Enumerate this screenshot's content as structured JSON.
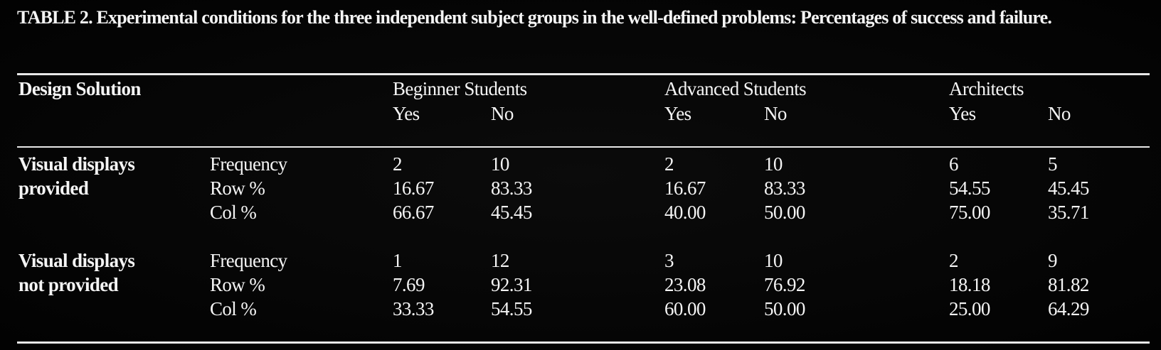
{
  "caption": "TABLE 2. Experimental conditions for the three independent subject groups in the well-defined problems: Percentages of success and failure.",
  "table": {
    "header": {
      "first": "Design Solution",
      "groups": [
        {
          "name": "Beginner Students",
          "sub": [
            "Yes",
            "No"
          ]
        },
        {
          "name": "Advanced Students",
          "sub": [
            "Yes",
            "No"
          ]
        },
        {
          "name": "Architects",
          "sub": [
            "Yes",
            "No"
          ]
        }
      ]
    },
    "blocks": [
      {
        "label": [
          "Visual displays",
          "provided"
        ],
        "rows": [
          {
            "measure": "Frequency",
            "cells": [
              "2",
              "10",
              "2",
              "10",
              "6",
              "5"
            ]
          },
          {
            "measure": "Row %",
            "cells": [
              "16.67",
              "83.33",
              "16.67",
              "83.33",
              "54.55",
              "45.45"
            ]
          },
          {
            "measure": "Col %",
            "cells": [
              "66.67",
              "45.45",
              "40.00",
              "50.00",
              "75.00",
              "35.71"
            ]
          }
        ]
      },
      {
        "label": [
          "Visual displays",
          "not provided"
        ],
        "rows": [
          {
            "measure": "Frequency",
            "cells": [
              "1",
              "12",
              "3",
              "10",
              "2",
              "9"
            ]
          },
          {
            "measure": "Row %",
            "cells": [
              "7.69",
              "92.31",
              "23.08",
              "76.92",
              "18.18",
              "81.82"
            ]
          },
          {
            "measure": "Col %",
            "cells": [
              "33.33",
              "54.55",
              "60.00",
              "50.00",
              "25.00",
              "64.29"
            ]
          }
        ]
      }
    ]
  }
}
